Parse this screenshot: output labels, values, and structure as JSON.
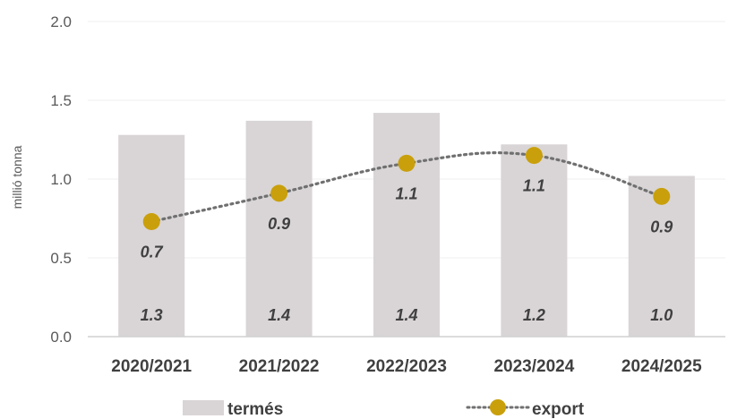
{
  "chart_data": {
    "type": "bar",
    "categories": [
      "2020/2021",
      "2021/2022",
      "2022/2023",
      "2023/2024",
      "2024/2025"
    ],
    "series": [
      {
        "name": "termés",
        "type": "bar",
        "values": [
          1.28,
          1.37,
          1.42,
          1.22,
          1.02
        ],
        "labels": [
          "1.3",
          "1.4",
          "1.4",
          "1.2",
          "1.0"
        ],
        "color": "#d9d5d6"
      },
      {
        "name": "export",
        "type": "line",
        "values": [
          0.73,
          0.91,
          1.1,
          1.15,
          0.89
        ],
        "labels": [
          "0.7",
          "0.9",
          "1.1",
          "1.1",
          "0.9"
        ],
        "color": "#c9a00b",
        "line_color": "#707070",
        "line_style": "dotted"
      }
    ],
    "ylabel": "millió tonna",
    "ylim": [
      0,
      2
    ],
    "yticks": [
      "0.0",
      "0.5",
      "1.0",
      "1.5",
      "2.0"
    ],
    "grid": true,
    "legend": "bottom"
  }
}
